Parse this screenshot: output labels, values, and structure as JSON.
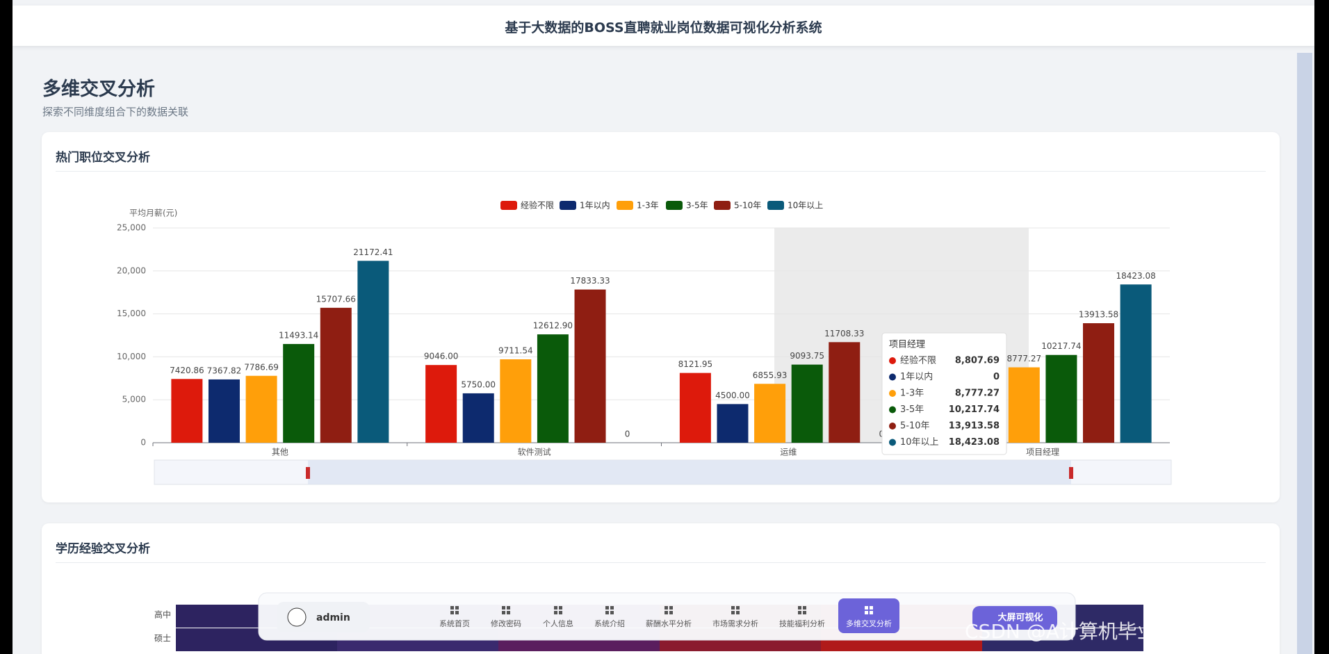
{
  "header": {
    "title": "基于大数据的BOSS直聘就业岗位数据可视化分析系统"
  },
  "page": {
    "title": "多维交叉分析",
    "subtitle": "探索不同维度组合下的数据关联"
  },
  "chart_data": {
    "type": "bar",
    "title": "热门职位交叉分析",
    "y_label": "平均月薪(元)",
    "categories": [
      "其他",
      "软件测试",
      "运维",
      "项目经理"
    ],
    "series": [
      {
        "name": "经验不限",
        "color": "#dd1a0c",
        "values": [
          7420.86,
          9046.0,
          8121.95,
          8807.69
        ],
        "value_labels": [
          "7420.86",
          "9046.00",
          "8121.95",
          "8807.69"
        ]
      },
      {
        "name": "1年以内",
        "color": "#0d2a6e",
        "values": [
          7367.82,
          5750.0,
          4500.0,
          0
        ],
        "value_labels": [
          "7367.82",
          "5750.00",
          "4500.00",
          "0"
        ]
      },
      {
        "name": "1-3年",
        "color": "#ff9f0a",
        "values": [
          7786.69,
          9711.54,
          6855.93,
          8777.27
        ],
        "value_labels": [
          "7786.69",
          "9711.54",
          "6855.93",
          "8777.27"
        ]
      },
      {
        "name": "3-5年",
        "color": "#0a5a0a",
        "values": [
          11493.14,
          12612.9,
          9093.75,
          10217.74
        ],
        "value_labels": [
          "11493.14",
          "12612.90",
          "9093.75",
          "10217.74"
        ]
      },
      {
        "name": "5-10年",
        "color": "#8f1e12",
        "values": [
          15707.66,
          17833.33,
          11708.33,
          13913.58
        ],
        "value_labels": [
          "15707.66",
          "17833.33",
          "11708.33",
          "13913.58"
        ]
      },
      {
        "name": "10年以上",
        "color": "#0a5a7a",
        "values": [
          21172.41,
          0,
          0,
          18423.08
        ],
        "value_labels": [
          "21172.41",
          "0",
          "0",
          "18423.08"
        ]
      }
    ],
    "ylim": [
      0,
      25000
    ],
    "yticks": [
      0,
      {
        "value": 5000,
        "label": "5,000"
      },
      {
        "value": 10000,
        "label": "10,000"
      },
      {
        "value": 15000,
        "label": "15,000"
      },
      {
        "value": 20000,
        "label": "20,000"
      },
      {
        "value": 25000,
        "label": "25,000"
      }
    ],
    "grid": true,
    "legend": "top",
    "tooltip": {
      "values": [
        "8,807.69",
        "0",
        "8,777.27",
        "10,217.74",
        "13,913.58",
        "18,423.08"
      ]
    }
  },
  "card2": {
    "title": "学历经验交叉分析",
    "rows": [
      "高中",
      "硕士"
    ]
  },
  "nav": {
    "user": "admin",
    "items": [
      "系统首页",
      "修改密码",
      "个人信息",
      "系统介绍",
      "薪酬水平分析",
      "市场需求分析",
      "技能福利分析",
      "多维交叉分析"
    ],
    "active": 7,
    "button": "大屏可视化"
  },
  "watermark": "CSDN @A计算机毕业设计-小途"
}
